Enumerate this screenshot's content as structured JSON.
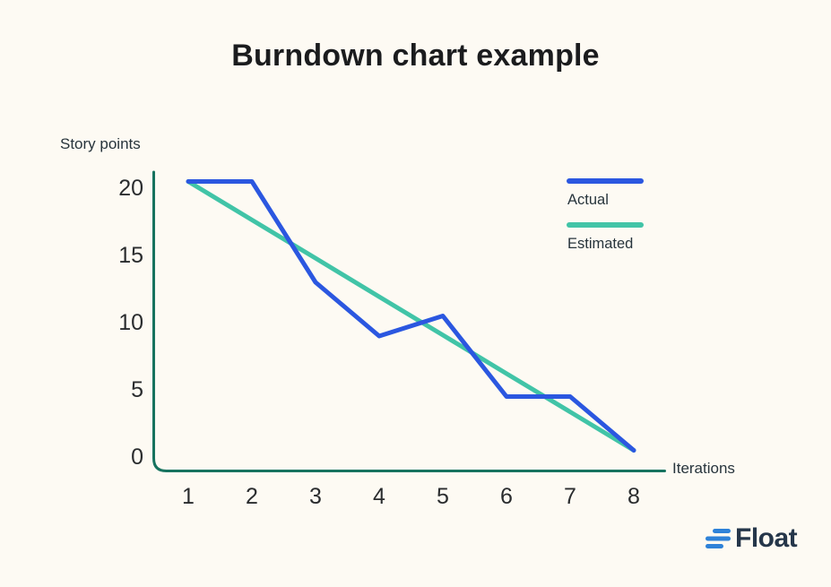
{
  "title": "Burndown chart example",
  "legend": {
    "actual": "Actual",
    "estimated": "Estimated"
  },
  "logo": {
    "text": "Float"
  },
  "colors": {
    "background": "#FDFAF3",
    "actual_line": "#2B57E0",
    "estimated_line": "#41C4A7",
    "axis": "#17735F",
    "title_text": "#1B1C1E",
    "label_text": "#27343C",
    "tick_text": "#2A2C2E",
    "logo_blue": "#2E82D8",
    "logo_text": "#25364A"
  },
  "chart_data": {
    "type": "line",
    "title": "Burndown chart example",
    "xlabel": "Iterations",
    "ylabel": "Story points",
    "x": [
      1,
      2,
      3,
      4,
      5,
      6,
      7,
      8
    ],
    "y_ticks": [
      20,
      15,
      10,
      5,
      0
    ],
    "xlim": [
      1,
      8
    ],
    "ylim": [
      0,
      21
    ],
    "grid": false,
    "legend_position": "upper right",
    "series": [
      {
        "name": "Actual",
        "color": "#2B57E0",
        "values": [
          20.5,
          20.5,
          13,
          9,
          10.5,
          4.5,
          4.5,
          0.5
        ]
      },
      {
        "name": "Estimated",
        "color": "#41C4A7",
        "values": [
          20.5,
          17.64,
          14.79,
          11.93,
          9.07,
          6.21,
          3.36,
          0.5
        ]
      }
    ]
  }
}
